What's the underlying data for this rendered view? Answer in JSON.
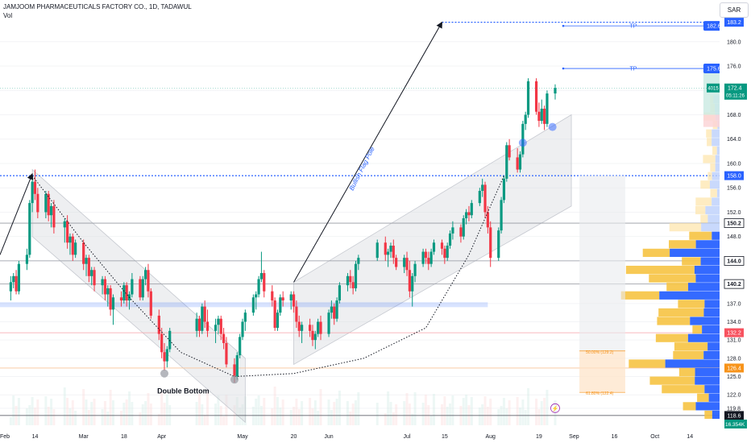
{
  "header": {
    "symbol_line": "JAMJOOM PHARMACEUTICALS FACTORY CO., 1D, TADAWUL",
    "vol_label": "Vol",
    "currency_button": "SAR"
  },
  "colors": {
    "bull": "#089981",
    "bear": "#f23645",
    "blue_accent": "#2962ff",
    "target_blue": "#2962ff",
    "fib_orange": "#f7931a",
    "profit_zone": "#ccebe4",
    "loss_zone": "#fbd5d7",
    "channel_fill": "#d9dbe0"
  },
  "annotations": {
    "double_bottom": "Double Bottom",
    "flag_pole": "Bullish Flag Pole",
    "tp1": "TP",
    "tp2": "TP",
    "fib_50": "50.00% (129.2)",
    "fib_618": "61.80% (122.4)"
  },
  "price_badges": [
    {
      "label": "182.6",
      "price": 182.6,
      "style": "blue"
    },
    {
      "label": "175.6",
      "price": 175.6,
      "style": "blue"
    }
  ],
  "current_price": {
    "price": 172.4,
    "label": "172.4",
    "timer": "05:11:26",
    "volume": "4015"
  },
  "chart_data": {
    "type": "candlestick",
    "title": "JAMJOOM PHARMACEUTICALS FACTORY CO., 1D, TADAWUL",
    "currency": "SAR",
    "y_axis": {
      "ticks": [
        119.8,
        122.0,
        125.0,
        128.0,
        131.0,
        134.0,
        137.0,
        140.0,
        144.0,
        148.0,
        152.0,
        156.0,
        160.0,
        164.0,
        168.0,
        172.0,
        176.0,
        180.0
      ],
      "range": [
        117.0,
        185.0
      ]
    },
    "x_axis": {
      "ticks": [
        "Feb",
        "14",
        "Mar",
        "18",
        "Apr",
        "May",
        "20",
        "Jun",
        "Jul",
        "15",
        "Aug",
        "19",
        "Sep",
        "16",
        "Oct",
        "14"
      ],
      "range_start": "2024-02-01",
      "range_end": "2024-10-25"
    },
    "horizontal_levels": [
      {
        "price": 183.2,
        "label": "183.2",
        "style": "dotted-blue"
      },
      {
        "price": 158.0,
        "label": "158.0",
        "style": "dotted-blue"
      },
      {
        "price": 150.2,
        "label": "150.2",
        "style": "gray"
      },
      {
        "price": 144.0,
        "label": "144.0",
        "style": "gray"
      },
      {
        "price": 140.2,
        "label": "140.2",
        "style": "gray"
      },
      {
        "price": 132.2,
        "label": "132.2",
        "style": "red"
      },
      {
        "price": 126.4,
        "label": "126.4",
        "style": "orange"
      },
      {
        "price": 118.6,
        "label": "118.6",
        "style": "dark"
      }
    ],
    "volume_axis_label": "16.354K",
    "candles": [
      [
        "2024-02-05",
        139,
        141.5,
        137.5,
        140.5
      ],
      [
        "2024-02-06",
        140.5,
        142,
        139.5,
        141.5
      ],
      [
        "2024-02-07",
        141.5,
        142.5,
        138.5,
        139
      ],
      [
        "2024-02-08",
        139,
        144,
        138.5,
        143.5
      ],
      [
        "2024-02-11",
        143.5,
        146,
        142.5,
        145
      ],
      [
        "2024-02-12",
        145,
        154,
        144.5,
        153.5
      ],
      [
        "2024-02-13",
        153.5,
        158,
        152,
        157
      ],
      [
        "2024-02-14",
        157,
        159,
        154,
        155
      ],
      [
        "2024-02-15",
        155,
        156,
        151,
        152
      ],
      [
        "2024-02-18",
        152,
        155.5,
        151,
        155
      ],
      [
        "2024-02-19",
        155,
        155.5,
        150.5,
        151.5
      ],
      [
        "2024-02-20",
        151.5,
        153.5,
        149.5,
        153
      ],
      [
        "2024-02-21",
        153,
        154,
        148.5,
        149.5
      ],
      [
        "2024-02-25",
        149.5,
        151,
        147,
        150.5
      ],
      [
        "2024-02-26",
        150.5,
        151.5,
        146,
        147
      ],
      [
        "2024-02-27",
        147,
        148.5,
        145,
        148
      ],
      [
        "2024-02-28",
        148,
        148.5,
        144,
        145
      ],
      [
        "2024-02-29",
        145,
        147.5,
        144.5,
        147
      ],
      [
        "2024-03-03",
        147,
        147.5,
        142.5,
        143.5
      ],
      [
        "2024-03-04",
        143.5,
        145,
        141.5,
        144.5
      ],
      [
        "2024-03-05",
        144.5,
        145,
        140.5,
        141.5
      ],
      [
        "2024-03-06",
        141.5,
        143,
        140,
        142.5
      ],
      [
        "2024-03-07",
        142.5,
        143,
        139,
        140
      ],
      [
        "2024-03-10",
        140,
        141.5,
        138.5,
        141
      ],
      [
        "2024-03-11",
        141,
        141.5,
        137.5,
        138.5
      ],
      [
        "2024-03-12",
        138.5,
        140,
        136.5,
        139.5
      ],
      [
        "2024-03-13",
        139.5,
        140,
        135,
        136
      ],
      [
        "2024-03-14",
        136,
        138.5,
        133.5,
        138
      ],
      [
        "2024-03-17",
        138,
        139,
        136.5,
        137.5
      ],
      [
        "2024-03-18",
        137.5,
        140.5,
        137,
        140
      ],
      [
        "2024-03-19",
        140,
        140.5,
        136.5,
        137.5
      ],
      [
        "2024-03-20",
        137.5,
        139,
        136,
        138.5
      ],
      [
        "2024-03-21",
        138.5,
        142,
        138,
        141
      ],
      [
        "2024-03-24",
        141,
        141.5,
        137.5,
        138
      ],
      [
        "2024-03-25",
        138,
        141.5,
        137.5,
        141
      ],
      [
        "2024-03-26",
        141,
        143,
        140,
        142.5
      ],
      [
        "2024-03-27",
        142.5,
        143.5,
        138,
        139
      ],
      [
        "2024-03-28",
        139,
        139.5,
        134.5,
        135
      ],
      [
        "2024-03-31",
        135,
        136,
        131,
        132
      ],
      [
        "2024-04-01",
        132,
        133,
        128,
        129
      ],
      [
        "2024-04-02",
        129,
        130.5,
        126,
        127.5
      ],
      [
        "2024-04-03",
        127.5,
        130,
        126.5,
        129.5
      ],
      [
        "2024-04-04",
        129.5,
        133,
        129,
        132.5
      ],
      [
        "2024-04-14",
        132.5,
        135.5,
        131.5,
        134.5
      ],
      [
        "2024-04-15",
        134.5,
        135,
        131.5,
        132.5
      ],
      [
        "2024-04-16",
        132.5,
        137,
        132,
        136.5
      ],
      [
        "2024-04-17",
        136.5,
        137.5,
        133,
        134
      ],
      [
        "2024-04-18",
        134,
        136,
        131.5,
        132.5
      ],
      [
        "2024-04-21",
        132.5,
        134.5,
        130.5,
        133.5
      ],
      [
        "2024-04-22",
        133.5,
        135,
        132,
        134.5
      ],
      [
        "2024-04-23",
        134.5,
        135,
        131,
        132
      ],
      [
        "2024-04-24",
        132,
        133,
        129.5,
        130.5
      ],
      [
        "2024-04-25",
        130.5,
        131.5,
        126.5,
        127
      ],
      [
        "2024-04-28",
        127,
        128,
        124,
        125
      ],
      [
        "2024-04-29",
        125,
        129,
        124.5,
        128.5
      ],
      [
        "2024-04-30",
        128.5,
        132,
        128,
        131.5
      ],
      [
        "2024-05-01",
        131.5,
        134.5,
        131,
        134
      ],
      [
        "2024-05-02",
        134,
        136,
        132.5,
        135.5
      ],
      [
        "2024-05-05",
        135.5,
        138.5,
        135,
        138
      ],
      [
        "2024-05-06",
        138,
        139,
        136,
        138.5
      ],
      [
        "2024-05-07",
        138.5,
        141.5,
        138,
        141
      ],
      [
        "2024-05-08",
        141,
        145.5,
        140.5,
        142
      ],
      [
        "2024-05-09",
        142,
        142.5,
        138,
        139
      ],
      [
        "2024-05-12",
        139,
        140,
        136.5,
        137.5
      ],
      [
        "2024-05-13",
        137.5,
        138,
        132.5,
        133
      ],
      [
        "2024-05-14",
        133,
        136,
        132.5,
        135.5
      ],
      [
        "2024-05-15",
        135.5,
        138.5,
        135,
        138
      ],
      [
        "2024-05-16",
        138,
        139,
        136.5,
        137.5
      ],
      [
        "2024-05-19",
        137.5,
        139,
        136,
        138.5
      ],
      [
        "2024-05-20",
        138.5,
        139,
        135.5,
        136.5
      ],
      [
        "2024-05-21",
        136.5,
        137.5,
        133,
        134
      ],
      [
        "2024-05-22",
        134,
        135,
        131.5,
        132.5
      ],
      [
        "2024-05-23",
        132.5,
        134,
        130.5,
        133.5
      ],
      [
        "2024-05-26",
        133.5,
        134.5,
        131.5,
        132.5
      ],
      [
        "2024-05-27",
        132.5,
        133.5,
        130,
        131
      ],
      [
        "2024-05-28",
        131,
        132.5,
        129.5,
        132
      ],
      [
        "2024-05-29",
        132,
        134.5,
        131.5,
        134
      ],
      [
        "2024-05-30",
        134,
        135,
        131,
        132
      ],
      [
        "2024-06-02",
        132,
        136,
        131.5,
        135.5
      ],
      [
        "2024-06-03",
        135.5,
        137.5,
        134.5,
        136.5
      ],
      [
        "2024-06-04",
        136.5,
        137,
        133.5,
        134.5
      ],
      [
        "2024-06-05",
        134.5,
        138,
        134,
        137.5
      ],
      [
        "2024-06-06",
        137.5,
        140.5,
        137,
        140
      ],
      [
        "2024-06-09",
        140,
        142,
        139,
        141.5
      ],
      [
        "2024-06-10",
        141.5,
        142.5,
        139.5,
        140.5
      ],
      [
        "2024-06-11",
        140.5,
        141.5,
        138.5,
        139.5
      ],
      [
        "2024-06-12",
        139.5,
        144,
        139,
        143.5
      ],
      [
        "2024-06-13",
        143.5,
        145,
        142.5,
        144.5
      ],
      [
        "2024-06-20",
        144.5,
        147.5,
        144,
        147
      ],
      [
        "2024-06-23",
        147,
        148,
        144,
        145
      ],
      [
        "2024-06-24",
        145,
        146,
        143,
        145.5
      ],
      [
        "2024-06-25",
        145.5,
        147,
        144.5,
        146.5
      ],
      [
        "2024-06-26",
        146.5,
        147.5,
        143.5,
        144.5
      ],
      [
        "2024-06-27",
        144.5,
        145,
        142.5,
        143
      ],
      [
        "2024-06-30",
        143,
        145,
        142,
        144.5
      ],
      [
        "2024-07-01",
        144.5,
        145.5,
        141.5,
        142.5
      ],
      [
        "2024-07-02",
        142.5,
        144,
        138,
        139
      ],
      [
        "2024-07-03",
        139,
        142,
        136.5,
        141.5
      ],
      [
        "2024-07-04",
        141.5,
        144,
        140.5,
        143.5
      ],
      [
        "2024-07-07",
        143.5,
        146,
        143,
        145.5
      ],
      [
        "2024-07-08",
        145.5,
        146,
        143.5,
        144.5
      ],
      [
        "2024-07-09",
        144.5,
        145.5,
        142.5,
        143.5
      ],
      [
        "2024-07-10",
        143.5,
        146,
        143,
        145.5
      ],
      [
        "2024-07-11",
        145.5,
        147.5,
        145,
        147
      ],
      [
        "2024-07-14",
        147,
        147.5,
        145,
        146
      ],
      [
        "2024-07-15",
        146,
        146.5,
        143.5,
        144.5
      ],
      [
        "2024-07-16",
        144.5,
        147,
        144,
        146.5
      ],
      [
        "2024-07-17",
        146.5,
        149,
        146,
        148.5
      ],
      [
        "2024-07-18",
        148.5,
        150.5,
        147.5,
        149.5
      ],
      [
        "2024-07-21",
        149.5,
        150,
        147,
        148
      ],
      [
        "2024-07-22",
        148,
        151.5,
        147.5,
        151
      ],
      [
        "2024-07-23",
        151,
        152.5,
        150,
        152
      ],
      [
        "2024-07-24",
        152,
        153,
        150.5,
        151.5
      ],
      [
        "2024-07-25",
        151.5,
        154,
        151,
        153.5
      ],
      [
        "2024-07-28",
        153.5,
        156,
        153,
        155.5
      ],
      [
        "2024-07-29",
        155.5,
        157.5,
        154.5,
        156.5
      ],
      [
        "2024-07-30",
        156.5,
        157,
        151,
        152
      ],
      [
        "2024-07-31",
        152,
        153,
        148.5,
        149.5
      ],
      [
        "2024-08-01",
        149.5,
        150.5,
        143,
        144.5
      ],
      [
        "2024-08-04",
        144.5,
        149.5,
        144,
        149
      ],
      [
        "2024-08-05",
        149,
        154.5,
        148.5,
        154
      ],
      [
        "2024-08-06",
        154,
        158,
        153.5,
        157.5
      ],
      [
        "2024-08-07",
        157.5,
        163.5,
        157,
        163
      ],
      [
        "2024-08-08",
        163,
        164,
        160.5,
        161
      ],
      [
        "2024-08-11",
        161,
        162.5,
        158.5,
        159
      ],
      [
        "2024-08-12",
        159,
        162,
        158.5,
        161.5
      ],
      [
        "2024-08-13",
        161.5,
        167,
        161,
        166.5
      ],
      [
        "2024-08-14",
        166.5,
        168.5,
        165.5,
        168
      ],
      [
        "2024-08-15",
        168,
        174,
        167.5,
        173.5
      ],
      [
        "2024-08-18",
        173.5,
        174,
        168,
        168.5
      ],
      [
        "2024-08-19",
        168.5,
        170,
        166,
        167
      ],
      [
        "2024-08-20",
        167,
        170.5,
        166.5,
        169
      ],
      [
        "2024-08-21",
        169,
        169.5,
        165.5,
        166.5
      ],
      [
        "2024-08-22",
        166.5,
        172,
        166,
        171.5
      ],
      [
        "2024-08-25",
        171.5,
        173,
        170.5,
        172.4
      ]
    ]
  }
}
